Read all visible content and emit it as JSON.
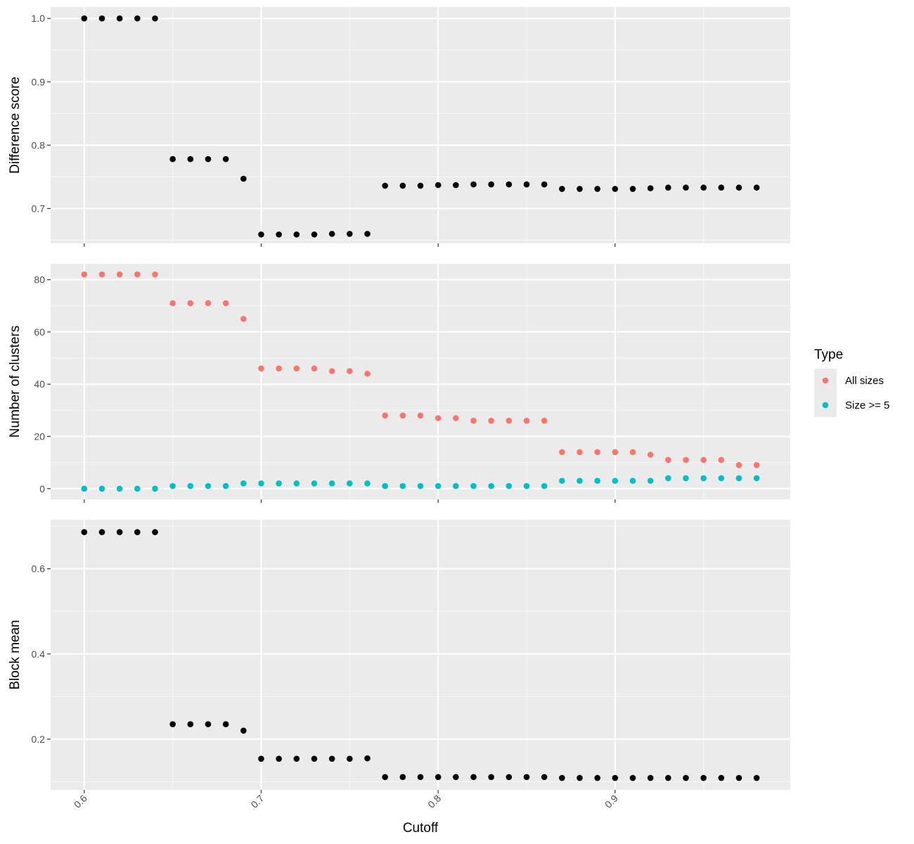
{
  "chart_data": {
    "type": "scatter",
    "x_label": "Cutoff",
    "x_ticks": [
      "0.6",
      "0.7",
      "0.8",
      "0.9"
    ],
    "x": [
      0.6,
      0.61,
      0.62,
      0.63,
      0.64,
      0.65,
      0.66,
      0.67,
      0.68,
      0.69,
      0.7,
      0.71,
      0.72,
      0.73,
      0.74,
      0.75,
      0.76,
      0.77,
      0.78,
      0.79,
      0.8,
      0.81,
      0.82,
      0.83,
      0.84,
      0.85,
      0.86,
      0.87,
      0.88,
      0.89,
      0.9,
      0.91,
      0.92,
      0.93,
      0.94,
      0.95,
      0.96,
      0.97,
      0.98
    ],
    "xlim": [
      0.581,
      0.999
    ],
    "panels": [
      {
        "ylabel": "Difference score",
        "ylim": [
          0.645,
          1.018
        ],
        "y_ticks": [
          "0.7",
          "0.8",
          "0.9",
          "1.0"
        ],
        "series": [
          {
            "color": "#000000",
            "values": [
              1.0,
              1.0,
              1.0,
              1.0,
              1.0,
              0.778,
              0.778,
              0.778,
              0.778,
              0.747,
              0.659,
              0.659,
              0.659,
              0.659,
              0.66,
              0.66,
              0.66,
              0.736,
              0.736,
              0.736,
              0.737,
              0.737,
              0.738,
              0.738,
              0.738,
              0.738,
              0.738,
              0.731,
              0.731,
              0.731,
              0.731,
              0.731,
              0.732,
              0.733,
              0.733,
              0.733,
              0.733,
              0.733,
              0.733
            ]
          }
        ]
      },
      {
        "ylabel": "Number of clusters",
        "ylim": [
          -4.1,
          86.1
        ],
        "y_ticks": [
          "0",
          "20",
          "40",
          "60",
          "80"
        ],
        "series": [
          {
            "name": "All sizes",
            "color": "#F8766D",
            "values": [
              82,
              82,
              82,
              82,
              82,
              71,
              71,
              71,
              71,
              65,
              46,
              46,
              46,
              46,
              45,
              45,
              44,
              28,
              28,
              28,
              27,
              27,
              26,
              26,
              26,
              26,
              26,
              14,
              14,
              14,
              14,
              14,
              13,
              11,
              11,
              11,
              11,
              9,
              9
            ]
          },
          {
            "name": "Size >= 5",
            "color": "#00BFC4",
            "values": [
              0,
              0,
              0,
              0,
              0,
              1,
              1,
              1,
              1,
              2,
              2,
              2,
              2,
              2,
              2,
              2,
              2,
              1,
              1,
              1,
              1,
              1,
              1,
              1,
              1,
              1,
              1,
              3,
              3,
              3,
              3,
              3,
              3,
              4,
              4,
              4,
              4,
              4,
              4
            ]
          }
        ]
      },
      {
        "ylabel": "Block mean",
        "ylim": [
          0.081,
          0.715
        ],
        "y_ticks": [
          "0.2",
          "0.4",
          "0.6"
        ],
        "series": [
          {
            "color": "#000000",
            "values": [
              0.686,
              0.686,
              0.686,
              0.686,
              0.686,
              0.235,
              0.235,
              0.235,
              0.235,
              0.22,
              0.154,
              0.154,
              0.154,
              0.154,
              0.154,
              0.154,
              0.155,
              0.111,
              0.111,
              0.111,
              0.111,
              0.111,
              0.111,
              0.111,
              0.111,
              0.111,
              0.111,
              0.109,
              0.109,
              0.109,
              0.109,
              0.109,
              0.109,
              0.109,
              0.109,
              0.109,
              0.109,
              0.109,
              0.109
            ]
          }
        ]
      }
    ],
    "legend": {
      "title": "Type",
      "position": "right",
      "entries": [
        {
          "label": "All sizes",
          "color": "#F8766D"
        },
        {
          "label": "Size >= 5",
          "color": "#00BFC4"
        }
      ]
    },
    "panel_background": "#EBEBEB",
    "grid": true
  }
}
